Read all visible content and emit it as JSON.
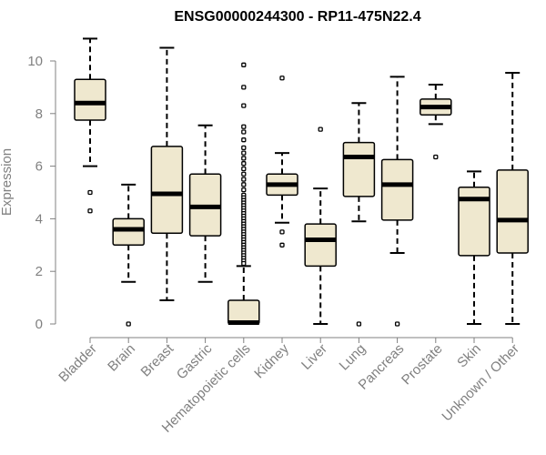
{
  "chart_data": {
    "type": "boxplot",
    "title": "ENSG00000244300 - RP11-475N22.4",
    "xlabel": "",
    "ylabel": "Expression",
    "ylim": [
      0,
      10.8
    ],
    "yticks": [
      0,
      2,
      4,
      6,
      8,
      10
    ],
    "colors": {
      "box_fill": "#efe8cf",
      "axis": "#808080"
    },
    "categories": [
      "Bladder",
      "Brain",
      "Breast",
      "Gastric",
      "Hematopoietic cells",
      "Kidney",
      "Liver",
      "Lung",
      "Pancreas",
      "Prostate",
      "Skin",
      "Unknown / Other"
    ],
    "boxes": [
      {
        "name": "Bladder",
        "min": 6.0,
        "q1": 7.75,
        "median": 8.4,
        "q3": 9.3,
        "max": 10.85,
        "outliers": [
          5.0,
          4.3
        ]
      },
      {
        "name": "Brain",
        "min": 1.6,
        "q1": 3.0,
        "median": 3.6,
        "q3": 4.0,
        "max": 5.3,
        "outliers": [
          0.0
        ]
      },
      {
        "name": "Breast",
        "min": 0.9,
        "q1": 3.45,
        "median": 4.95,
        "q3": 6.75,
        "max": 10.5,
        "outliers": []
      },
      {
        "name": "Gastric",
        "min": 1.6,
        "q1": 3.35,
        "median": 4.45,
        "q3": 5.7,
        "max": 7.55,
        "outliers": []
      },
      {
        "name": "Hematopoietic cells",
        "min": 0.0,
        "q1": 0.0,
        "median": 0.05,
        "q3": 0.9,
        "max": 2.2,
        "outliers": [
          9.85,
          9.0,
          8.3,
          7.5,
          7.3,
          7.0,
          6.7,
          6.5,
          6.3,
          6.1,
          5.9,
          5.7,
          5.5,
          5.3,
          5.1,
          4.9,
          4.8,
          4.7,
          4.6,
          4.5,
          4.4,
          4.3,
          4.2,
          4.1,
          4.0,
          3.9,
          3.8,
          3.7,
          3.6,
          3.5,
          3.4,
          3.3,
          3.2,
          3.1,
          3.0,
          2.9,
          2.8,
          2.7,
          2.6,
          2.5,
          2.4,
          2.3
        ]
      },
      {
        "name": "Kidney",
        "min": 3.85,
        "q1": 4.9,
        "median": 5.3,
        "q3": 5.7,
        "max": 6.5,
        "outliers": [
          9.35,
          3.5,
          3.0
        ]
      },
      {
        "name": "Liver",
        "min": 0.0,
        "q1": 2.2,
        "median": 3.2,
        "q3": 3.8,
        "max": 5.15,
        "outliers": [
          7.4
        ]
      },
      {
        "name": "Lung",
        "min": 3.9,
        "q1": 4.85,
        "median": 6.35,
        "q3": 6.9,
        "max": 8.4,
        "outliers": [
          0.0
        ]
      },
      {
        "name": "Pancreas",
        "min": 2.7,
        "q1": 3.95,
        "median": 5.3,
        "q3": 6.25,
        "max": 9.4,
        "outliers": [
          0.0
        ]
      },
      {
        "name": "Prostate",
        "min": 7.6,
        "q1": 7.95,
        "median": 8.25,
        "q3": 8.55,
        "max": 9.1,
        "outliers": [
          6.35
        ]
      },
      {
        "name": "Skin",
        "min": 0.0,
        "q1": 2.6,
        "median": 4.75,
        "q3": 5.2,
        "max": 5.8,
        "outliers": []
      },
      {
        "name": "Unknown / Other",
        "min": 0.0,
        "q1": 2.7,
        "median": 3.95,
        "q3": 5.85,
        "max": 9.55,
        "outliers": []
      }
    ]
  }
}
